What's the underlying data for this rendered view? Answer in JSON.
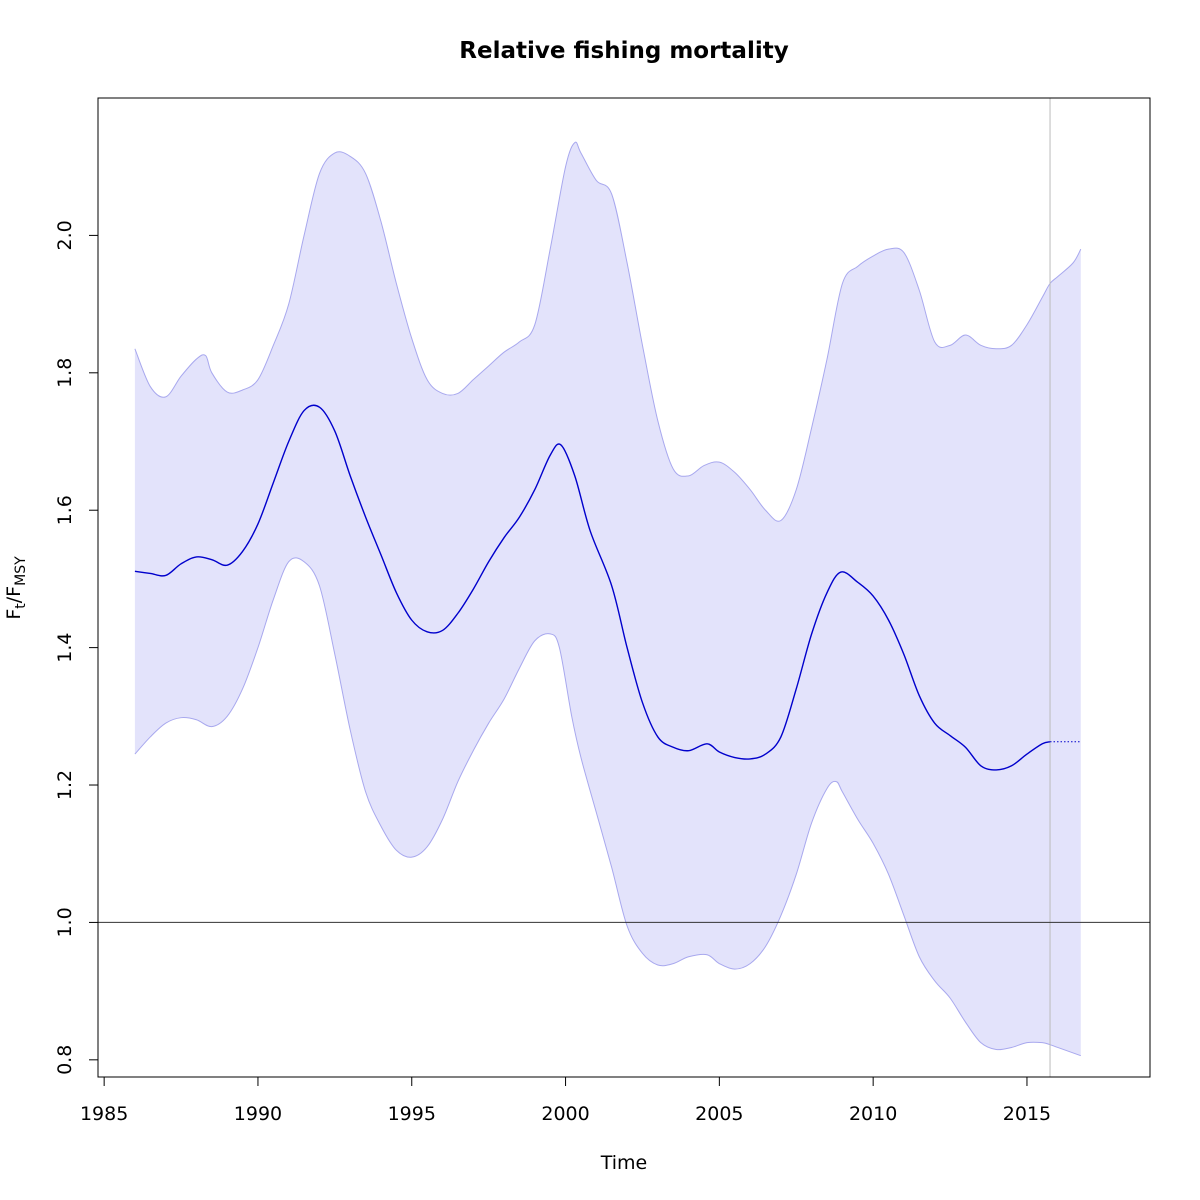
{
  "chart_data": {
    "type": "line",
    "title": "Relative fishing mortality",
    "xlabel": "Time",
    "ylabel": {
      "main": "F",
      "sub1": "t",
      "sep": "/F",
      "sub2": "MSY"
    },
    "xlim": [
      1984.8,
      2019.0
    ],
    "ylim": [
      0.775,
      2.2
    ],
    "xticks": [
      1985,
      1990,
      1995,
      2000,
      2005,
      2010,
      2015
    ],
    "xtick_labels": [
      "1985",
      "1990",
      "1995",
      "2000",
      "2005",
      "2010",
      "2015"
    ],
    "yticks": [
      0.8,
      1.0,
      1.2,
      1.4,
      1.6,
      1.8,
      2.0
    ],
    "ytick_labels": [
      "0.8",
      "1.0",
      "1.2",
      "1.4",
      "1.6",
      "1.8",
      "2.0"
    ],
    "reference_hline": 1.0,
    "reference_vline": 2015.75,
    "grid": false,
    "colors": {
      "line": "#0000cc",
      "band_fill": "#e3e3fb",
      "band_edge": "#a8a8ee",
      "reference": "#333333",
      "vline": "#bbbbbb"
    },
    "series": [
      {
        "role": "estimate",
        "x": [
          1986.0,
          1986.5,
          1987.0,
          1987.5,
          1988.0,
          1988.5,
          1989.0,
          1989.5,
          1990.0,
          1990.5,
          1991.0,
          1991.5,
          1992.0,
          1992.5,
          1993.0,
          1993.5,
          1994.0,
          1994.5,
          1995.0,
          1995.5,
          1996.0,
          1996.5,
          1997.0,
          1997.5,
          1998.0,
          1998.5,
          1999.0,
          1999.5,
          1999.85,
          2000.3,
          2000.8,
          2001.5,
          2002.0,
          2002.5,
          2003.0,
          2003.5,
          2004.0,
          2004.6,
          2005.0,
          2005.5,
          2006.0,
          2006.5,
          2007.0,
          2007.5,
          2008.0,
          2008.5,
          2008.95,
          2009.5,
          2010.0,
          2010.5,
          2011.0,
          2011.5,
          2012.0,
          2012.5,
          2013.0,
          2013.5,
          2014.0,
          2014.5,
          2015.0,
          2015.5,
          2015.75
        ],
        "values": [
          1.511,
          1.508,
          1.505,
          1.522,
          1.532,
          1.528,
          1.52,
          1.54,
          1.58,
          1.64,
          1.7,
          1.745,
          1.75,
          1.715,
          1.65,
          1.59,
          1.535,
          1.48,
          1.44,
          1.423,
          1.425,
          1.45,
          1.485,
          1.525,
          1.56,
          1.59,
          1.63,
          1.68,
          1.695,
          1.65,
          1.57,
          1.49,
          1.4,
          1.32,
          1.27,
          1.255,
          1.25,
          1.26,
          1.248,
          1.24,
          1.238,
          1.245,
          1.27,
          1.34,
          1.42,
          1.48,
          1.51,
          1.495,
          1.475,
          1.44,
          1.39,
          1.33,
          1.29,
          1.272,
          1.255,
          1.228,
          1.222,
          1.228,
          1.245,
          1.26,
          1.263
        ]
      },
      {
        "role": "upper",
        "x": [
          1986.0,
          1986.5,
          1987.0,
          1987.5,
          1988.0,
          1988.3,
          1988.5,
          1989.0,
          1989.5,
          1990.0,
          1990.5,
          1991.0,
          1991.5,
          1992.0,
          1992.5,
          1993.0,
          1993.5,
          1994.0,
          1994.5,
          1995.0,
          1995.5,
          1996.0,
          1996.5,
          1997.0,
          1997.5,
          1998.0,
          1998.5,
          1999.0,
          1999.5,
          2000.0,
          2000.3,
          2000.5,
          2001.0,
          2001.5,
          2002.0,
          2002.5,
          2003.0,
          2003.5,
          2004.0,
          2004.5,
          2005.0,
          2005.5,
          2006.0,
          2006.5,
          2007.0,
          2007.5,
          2008.0,
          2008.5,
          2009.0,
          2009.5,
          2010.0,
          2010.5,
          2011.0,
          2011.5,
          2012.0,
          2012.5,
          2013.0,
          2013.5,
          2014.0,
          2014.5,
          2015.0,
          2015.5,
          2015.75,
          2016.0,
          2016.5,
          2016.75
        ],
        "values": [
          1.835,
          1.78,
          1.765,
          1.795,
          1.82,
          1.825,
          1.8,
          1.772,
          1.775,
          1.79,
          1.84,
          1.9,
          2.0,
          2.09,
          2.12,
          2.115,
          2.09,
          2.02,
          1.93,
          1.85,
          1.79,
          1.77,
          1.77,
          1.79,
          1.81,
          1.83,
          1.845,
          1.87,
          1.98,
          2.1,
          2.135,
          2.12,
          2.08,
          2.06,
          1.96,
          1.84,
          1.73,
          1.66,
          1.65,
          1.665,
          1.67,
          1.655,
          1.63,
          1.6,
          1.585,
          1.63,
          1.72,
          1.82,
          1.93,
          1.955,
          1.97,
          1.98,
          1.975,
          1.92,
          1.845,
          1.84,
          1.855,
          1.84,
          1.835,
          1.84,
          1.87,
          1.91,
          1.93,
          1.94,
          1.96,
          1.98
        ]
      },
      {
        "role": "lower",
        "x": [
          1986.0,
          1986.5,
          1987.0,
          1987.5,
          1988.0,
          1988.5,
          1989.0,
          1989.5,
          1990.0,
          1990.5,
          1991.0,
          1991.5,
          1992.0,
          1992.5,
          1993.0,
          1993.5,
          1994.0,
          1994.5,
          1995.0,
          1995.5,
          1996.0,
          1996.5,
          1997.0,
          1997.5,
          1998.0,
          1998.5,
          1999.0,
          1999.5,
          1999.8,
          2000.2,
          2000.5,
          2001.0,
          2001.5,
          2002.0,
          2002.5,
          2003.0,
          2003.5,
          2004.0,
          2004.6,
          2005.0,
          2005.5,
          2006.0,
          2006.5,
          2007.0,
          2007.5,
          2008.0,
          2008.5,
          2008.8,
          2009.0,
          2009.5,
          2010.0,
          2010.5,
          2011.0,
          2011.5,
          2012.0,
          2012.5,
          2013.0,
          2013.5,
          2014.0,
          2014.5,
          2015.0,
          2015.5,
          2015.75,
          2016.0,
          2016.5,
          2016.75
        ],
        "values": [
          1.245,
          1.27,
          1.29,
          1.298,
          1.295,
          1.285,
          1.3,
          1.34,
          1.4,
          1.47,
          1.525,
          1.525,
          1.49,
          1.39,
          1.28,
          1.19,
          1.14,
          1.105,
          1.095,
          1.11,
          1.15,
          1.205,
          1.25,
          1.29,
          1.325,
          1.37,
          1.41,
          1.42,
          1.4,
          1.3,
          1.24,
          1.16,
          1.08,
          0.995,
          0.955,
          0.938,
          0.94,
          0.95,
          0.953,
          0.94,
          0.932,
          0.94,
          0.965,
          1.01,
          1.07,
          1.145,
          1.195,
          1.205,
          1.19,
          1.15,
          1.115,
          1.07,
          1.01,
          0.95,
          0.915,
          0.89,
          0.855,
          0.825,
          0.815,
          0.818,
          0.825,
          0.825,
          0.822,
          0.818,
          0.81,
          0.806
        ]
      },
      {
        "role": "forecast",
        "x": [
          2015.75,
          2016.75
        ],
        "values": [
          1.263,
          1.263
        ]
      }
    ]
  }
}
